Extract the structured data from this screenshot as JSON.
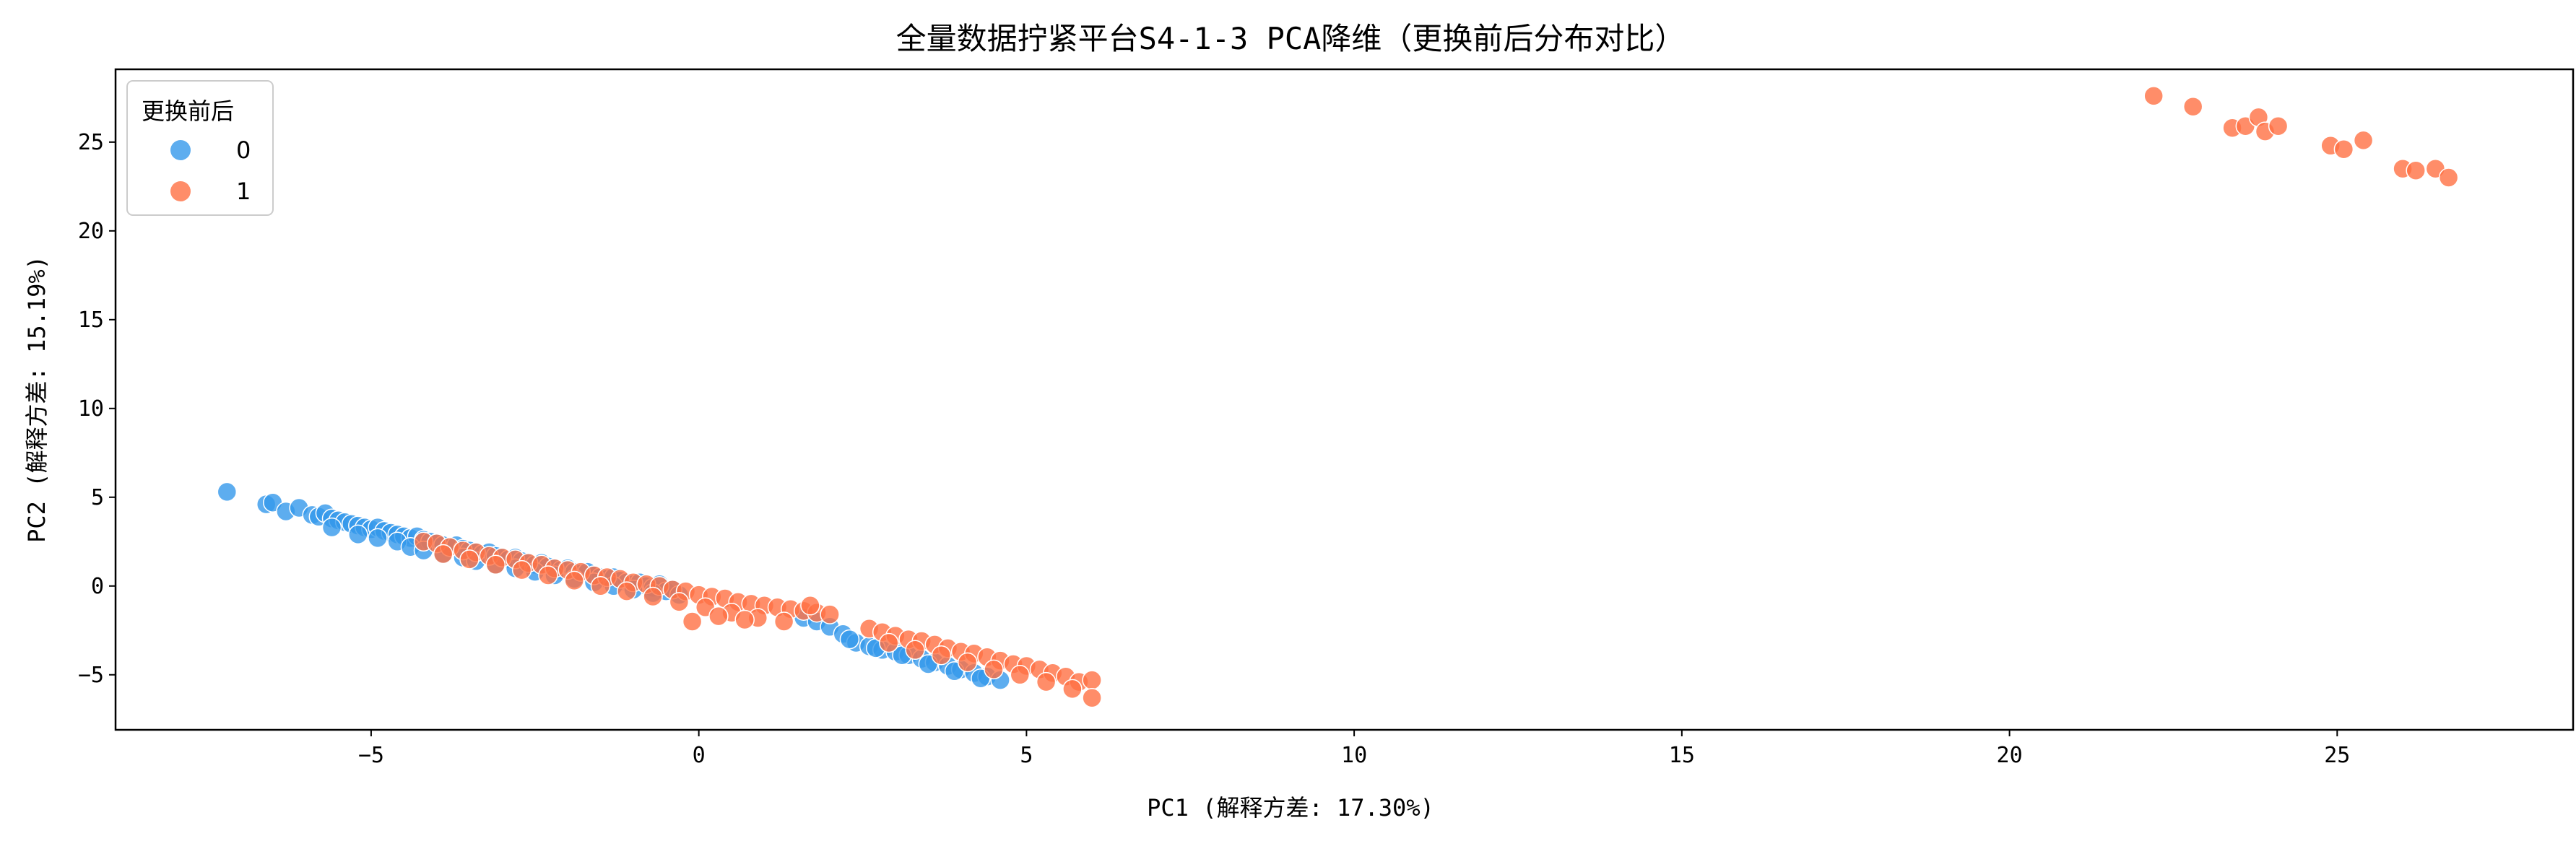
{
  "chart_data": {
    "type": "scatter",
    "title": "全量数据拧紧平台S4-1-3 PCA降维（更换前后分布对比）",
    "xlabel": "PC1 (解释方差: 17.30%)",
    "ylabel": "PC2 (解释方差: 15.19%)",
    "xlim": [
      -8.9,
      28.6
    ],
    "ylim": [
      -8.1,
      29.1
    ],
    "xticks": [
      -5,
      0,
      5,
      10,
      15,
      20,
      25
    ],
    "yticks": [
      -5,
      0,
      5,
      10,
      15,
      20,
      25
    ],
    "grid": false,
    "legend": {
      "title": "更换前后",
      "placement": "top-left"
    },
    "series": [
      {
        "name": "0",
        "color": "#3498eb",
        "x": [
          -7.2,
          -6.6,
          -6.5,
          -6.3,
          -6.1,
          -5.9,
          -5.8,
          -5.7,
          -5.6,
          -5.5,
          -5.4,
          -5.3,
          -5.2,
          -5.1,
          -5.0,
          -4.9,
          -4.8,
          -4.7,
          -4.6,
          -4.5,
          -4.4,
          -4.3,
          -4.2,
          -4.1,
          -4.0,
          -3.9,
          -3.8,
          -3.7,
          -3.6,
          -3.5,
          -3.4,
          -3.3,
          -3.2,
          -3.1,
          -3.0,
          -2.9,
          -2.8,
          -2.7,
          -2.6,
          -2.5,
          -2.4,
          -2.3,
          -2.2,
          -2.1,
          -2.0,
          -1.9,
          -1.8,
          -1.7,
          -1.6,
          -1.5,
          -1.4,
          -1.3,
          -1.2,
          -1.1,
          -1.0,
          -0.9,
          -0.8,
          -0.7,
          -0.6,
          -0.5,
          -0.4,
          -0.3,
          -5.6,
          -5.2,
          -4.9,
          -4.6,
          -4.4,
          -4.2,
          -3.9,
          -3.6,
          -3.4,
          -3.1,
          -2.8,
          -2.5,
          -2.2,
          -1.9,
          -1.6,
          -1.3,
          -1.0,
          -0.7,
          1.6,
          1.8,
          2.0,
          2.2,
          2.4,
          2.6,
          2.8,
          3.0,
          3.2,
          3.4,
          3.6,
          3.8,
          4.0,
          4.2,
          4.4,
          4.6,
          2.3,
          2.7,
          3.1,
          3.5,
          3.9,
          4.3
        ],
        "y": [
          5.3,
          4.6,
          4.7,
          4.2,
          4.4,
          4.0,
          3.9,
          4.1,
          3.8,
          3.7,
          3.6,
          3.5,
          3.4,
          3.3,
          3.2,
          3.3,
          3.1,
          3.0,
          2.9,
          2.8,
          2.7,
          2.8,
          2.6,
          2.5,
          2.4,
          2.3,
          2.2,
          2.3,
          2.1,
          2.0,
          1.9,
          1.8,
          1.9,
          1.7,
          1.6,
          1.5,
          1.6,
          1.4,
          1.3,
          1.2,
          1.3,
          1.1,
          1.0,
          0.9,
          1.0,
          0.8,
          0.7,
          0.8,
          0.6,
          0.5,
          0.4,
          0.5,
          0.3,
          0.2,
          0.1,
          0.2,
          0.0,
          -0.1,
          0.1,
          -0.3,
          -0.2,
          -0.5,
          3.3,
          2.9,
          2.7,
          2.5,
          2.2,
          2.0,
          1.8,
          1.6,
          1.4,
          1.2,
          1.0,
          0.8,
          0.6,
          0.4,
          0.2,
          0.0,
          -0.2,
          -0.4,
          -1.8,
          -2.0,
          -2.3,
          -2.7,
          -3.2,
          -3.4,
          -3.6,
          -3.7,
          -3.9,
          -4.1,
          -4.3,
          -4.5,
          -4.7,
          -4.9,
          -5.1,
          -5.3,
          -3.0,
          -3.5,
          -3.9,
          -4.4,
          -4.8,
          -5.2
        ]
      },
      {
        "name": "1",
        "color": "#ff7043",
        "x": [
          -4.2,
          -4.0,
          -3.8,
          -3.6,
          -3.4,
          -3.2,
          -3.0,
          -2.8,
          -2.6,
          -2.4,
          -2.2,
          -2.0,
          -1.8,
          -1.6,
          -1.4,
          -1.2,
          -1.0,
          -0.8,
          -0.6,
          -0.4,
          -0.2,
          0.0,
          0.2,
          0.4,
          0.6,
          0.8,
          1.0,
          1.2,
          1.4,
          1.6,
          1.8,
          2.0,
          -3.9,
          -3.5,
          -3.1,
          -2.7,
          -2.3,
          -1.9,
          -1.5,
          -1.1,
          -0.7,
          -0.3,
          0.1,
          0.5,
          0.9,
          1.3,
          1.7,
          -0.1,
          0.3,
          0.7,
          2.6,
          2.8,
          3.0,
          3.2,
          3.4,
          3.6,
          3.8,
          4.0,
          4.2,
          4.4,
          4.6,
          4.8,
          5.0,
          5.2,
          5.4,
          5.6,
          5.8,
          6.0,
          2.9,
          3.3,
          3.7,
          4.1,
          4.5,
          4.9,
          5.3,
          5.7,
          6.0,
          22.2,
          22.8,
          23.4,
          23.6,
          23.8,
          23.9,
          24.1,
          24.9,
          25.1,
          25.4,
          26.0,
          26.2,
          26.5,
          26.7
        ],
        "y": [
          2.5,
          2.4,
          2.2,
          2.0,
          1.9,
          1.7,
          1.6,
          1.5,
          1.3,
          1.2,
          1.0,
          0.9,
          0.8,
          0.6,
          0.5,
          0.4,
          0.2,
          0.1,
          0.0,
          -0.2,
          -0.3,
          -0.5,
          -0.6,
          -0.7,
          -0.9,
          -1.0,
          -1.1,
          -1.2,
          -1.3,
          -1.4,
          -1.5,
          -1.6,
          1.8,
          1.5,
          1.2,
          0.9,
          0.6,
          0.3,
          0.0,
          -0.3,
          -0.6,
          -0.9,
          -1.2,
          -1.5,
          -1.8,
          -2.0,
          -1.1,
          -2.0,
          -1.7,
          -1.9,
          -2.4,
          -2.6,
          -2.8,
          -3.0,
          -3.1,
          -3.3,
          -3.5,
          -3.7,
          -3.8,
          -4.0,
          -4.2,
          -4.4,
          -4.5,
          -4.7,
          -4.9,
          -5.1,
          -5.4,
          -5.3,
          -3.2,
          -3.6,
          -3.9,
          -4.3,
          -4.7,
          -5.0,
          -5.4,
          -5.8,
          -6.3,
          27.6,
          27.0,
          25.8,
          25.9,
          26.4,
          25.6,
          25.9,
          24.8,
          24.6,
          25.1,
          23.5,
          23.4,
          23.5,
          23.0
        ]
      }
    ]
  }
}
